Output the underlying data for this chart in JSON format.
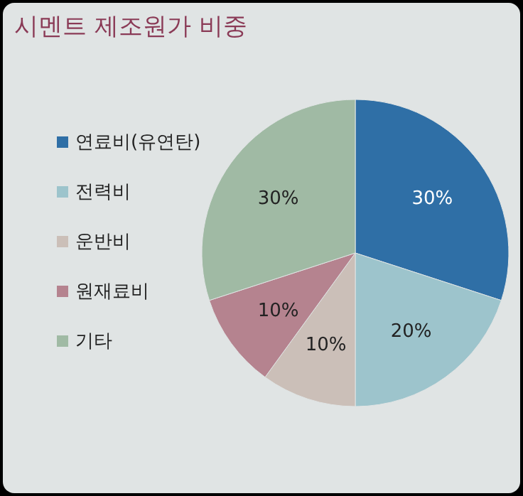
{
  "chart_data": {
    "type": "pie",
    "title": "시멘트 제조원가 비중",
    "categories": [
      "연료비(유연탄)",
      "전력비",
      "운반비",
      "원재료비",
      "기타"
    ],
    "values": [
      30,
      20,
      10,
      10,
      30
    ],
    "colors": [
      "#2f6fa6",
      "#9dc4cc",
      "#cbbfb8",
      "#b5838f",
      "#a0baa4"
    ],
    "value_labels": [
      "30%",
      "20%",
      "10%",
      "10%",
      "30%"
    ],
    "legend": "left"
  }
}
